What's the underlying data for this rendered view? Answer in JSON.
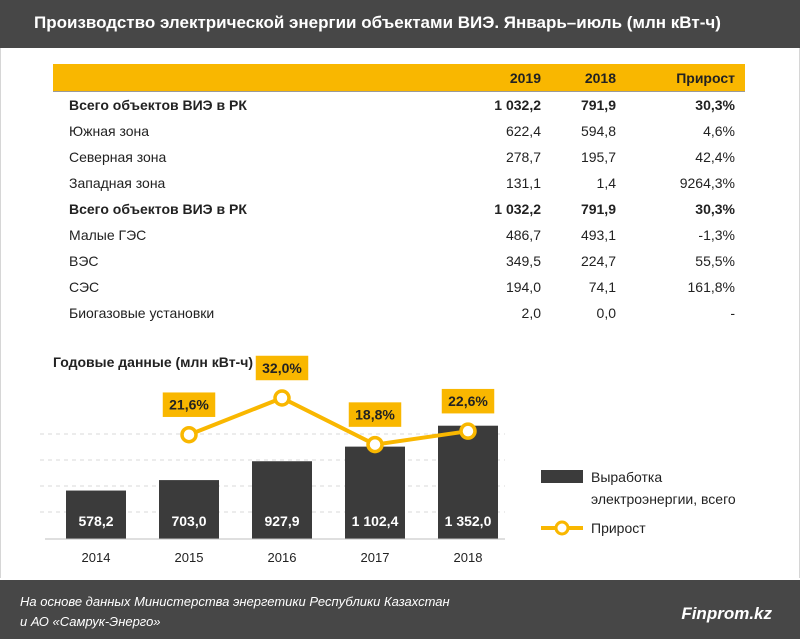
{
  "header": {
    "title": "Производство электрической энергии объектами ВИЭ. Январь–июль (млн кВт-ч)"
  },
  "table": {
    "columns": [
      "",
      "2019",
      "2018",
      "Прирост"
    ],
    "rows": [
      {
        "name": "Всего объектов ВИЭ в РК",
        "v2019": "1 032,2",
        "v2018": "791,9",
        "growth": "30,3%",
        "bold": true
      },
      {
        "name": "Южная зона",
        "v2019": "622,4",
        "v2018": "594,8",
        "growth": "4,6%",
        "bold": false
      },
      {
        "name": "Северная зона",
        "v2019": "278,7",
        "v2018": "195,7",
        "growth": "42,4%",
        "bold": false
      },
      {
        "name": "Западная зона",
        "v2019": "131,1",
        "v2018": "1,4",
        "growth": "9264,3%",
        "bold": false
      },
      {
        "name": "Всего объектов ВИЭ в РК",
        "v2019": "1 032,2",
        "v2018": "791,9",
        "growth": "30,3%",
        "bold": true
      },
      {
        "name": "Малые ГЭС",
        "v2019": "486,7",
        "v2018": "493,1",
        "growth": "-1,3%",
        "bold": false
      },
      {
        "name": "ВЭС",
        "v2019": "349,5",
        "v2018": "224,7",
        "growth": "55,5%",
        "bold": false
      },
      {
        "name": "СЭС",
        "v2019": "194,0",
        "v2018": "74,1",
        "growth": "161,8%",
        "bold": false
      },
      {
        "name": "Биогазовые установки",
        "v2019": "2,0",
        "v2018": "0,0",
        "growth": "-",
        "bold": false
      }
    ]
  },
  "chart_data": {
    "type": "bar",
    "title": "Годовые данные (млн кВт-ч)",
    "categories": [
      "2014",
      "2015",
      "2016",
      "2017",
      "2018"
    ],
    "series": [
      {
        "name": "Выработка электроэнергии, всего",
        "type": "bar",
        "values": [
          578.2,
          703.0,
          927.9,
          1102.4,
          1352.0
        ],
        "labels": [
          "578,2",
          "703,0",
          "927,9",
          "1 102,4",
          "1 352,0"
        ]
      },
      {
        "name": "Прирост",
        "type": "line",
        "values": [
          null,
          21.6,
          32.0,
          18.8,
          22.6
        ],
        "labels": [
          "",
          "21,6%",
          "32,0%",
          "18,8%",
          "22,6%"
        ]
      }
    ],
    "legend": [
      "Выработка электроэнергии, всего",
      "Прирост"
    ],
    "colors": {
      "bar": "#3b3b3b",
      "line": "#f9b700",
      "marker_fill": "#ffffff",
      "label_box": "#f9b700"
    }
  },
  "footer": {
    "line1": "На основе данных  Министерства энергетики Республики Казахстан",
    "line2": "и АО «Самрук-Энерго»",
    "brand": "Finprom.kz"
  }
}
